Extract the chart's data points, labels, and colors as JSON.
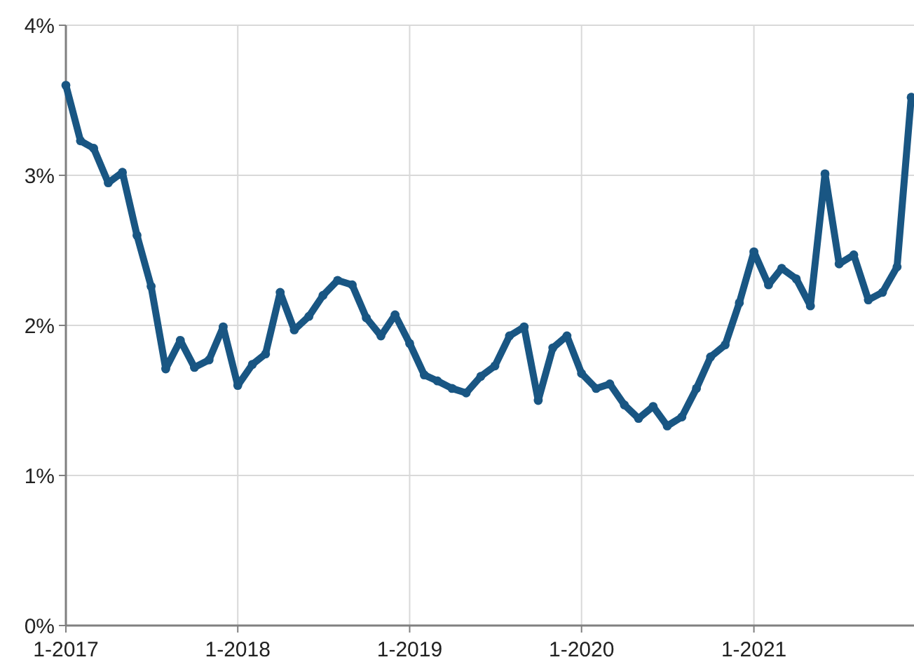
{
  "chart_data": {
    "type": "line",
    "x": [
      "2017-01",
      "2017-02",
      "2017-03",
      "2017-04",
      "2017-05",
      "2017-06",
      "2017-07",
      "2017-08",
      "2017-09",
      "2017-10",
      "2017-11",
      "2017-12",
      "2018-01",
      "2018-02",
      "2018-03",
      "2018-04",
      "2018-05",
      "2018-06",
      "2018-07",
      "2018-08",
      "2018-09",
      "2018-10",
      "2018-11",
      "2018-12",
      "2019-01",
      "2019-02",
      "2019-03",
      "2019-04",
      "2019-05",
      "2019-06",
      "2019-07",
      "2019-08",
      "2019-09",
      "2019-10",
      "2019-11",
      "2019-12",
      "2020-01",
      "2020-02",
      "2020-03",
      "2020-04",
      "2020-05",
      "2020-06",
      "2020-07",
      "2020-08",
      "2020-09",
      "2020-10",
      "2020-11",
      "2020-12",
      "2021-01",
      "2021-02",
      "2021-03",
      "2021-04",
      "2021-05",
      "2021-06",
      "2021-07",
      "2021-08",
      "2021-09",
      "2021-10",
      "2021-11",
      "2021-12"
    ],
    "series": [
      {
        "color": "#195683",
        "values": [
          3.6,
          3.23,
          3.18,
          2.95,
          3.02,
          2.6,
          2.26,
          1.71,
          1.9,
          1.72,
          1.77,
          1.99,
          1.6,
          1.74,
          1.81,
          2.22,
          1.97,
          2.06,
          2.2,
          2.3,
          2.27,
          2.05,
          1.93,
          2.07,
          1.88,
          1.67,
          1.63,
          1.58,
          1.55,
          1.66,
          1.73,
          1.93,
          1.99,
          1.5,
          1.85,
          1.93,
          1.68,
          1.58,
          1.61,
          1.47,
          1.38,
          1.46,
          1.33,
          1.39,
          1.58,
          1.79,
          1.87,
          2.15,
          2.49,
          2.27,
          2.38,
          2.31,
          2.13,
          3.01,
          2.41,
          2.47,
          2.17,
          2.22,
          2.39,
          3.52
        ]
      }
    ],
    "xlim": [
      "2017-01",
      "2021-12"
    ],
    "xticks": [
      {
        "value": "2017-01",
        "label": "1-2017"
      },
      {
        "value": "2018-01",
        "label": "1-2018"
      },
      {
        "value": "2019-01",
        "label": "1-2019"
      },
      {
        "value": "2020-01",
        "label": "1-2020"
      },
      {
        "value": "2021-01",
        "label": "1-2021"
      }
    ],
    "ylim": [
      0,
      4
    ],
    "yticks": [
      {
        "value": 0,
        "label": "0%"
      },
      {
        "value": 1,
        "label": "1%"
      },
      {
        "value": 2,
        "label": "2%"
      },
      {
        "value": 3,
        "label": "3%"
      },
      {
        "value": 4,
        "label": "4%"
      }
    ],
    "grid": true,
    "marker": "circle",
    "line_style": "solid"
  }
}
